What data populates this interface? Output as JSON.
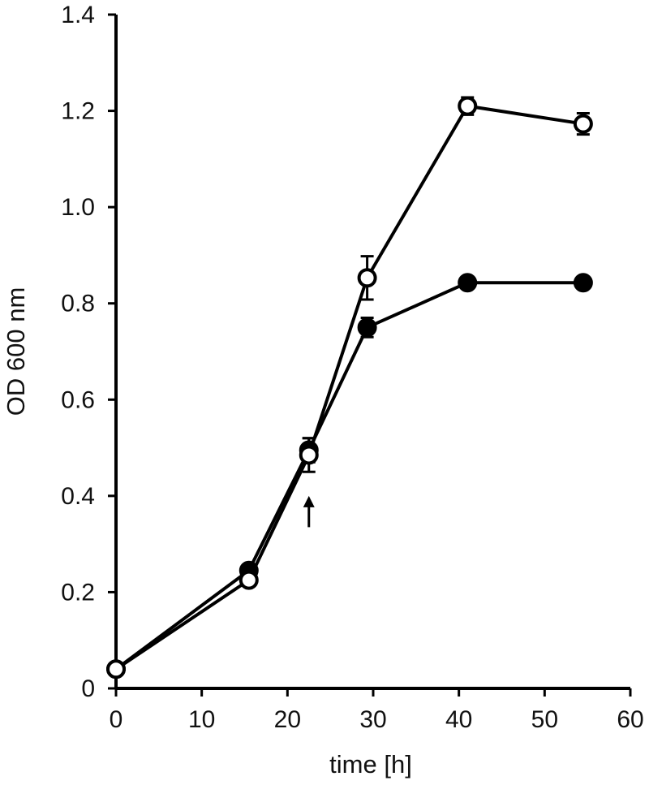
{
  "chart_data": {
    "type": "line",
    "title": "",
    "xlabel": "time [h]",
    "ylabel": "OD 600 nm",
    "xlim": [
      0,
      60
    ],
    "ylim": [
      0,
      1.4
    ],
    "x_ticks": [
      "0",
      "10",
      "20",
      "30",
      "40",
      "50",
      "60"
    ],
    "y_ticks": [
      "0",
      "0.2",
      "0.4",
      "0.6",
      "0.8",
      "1.0",
      "1.2",
      "1.4"
    ],
    "grid": false,
    "legend": "none",
    "series": [
      {
        "marker": "filled-circle",
        "color": "#000000",
        "x": [
          0,
          15.5,
          22.5,
          29.3,
          41,
          54.5
        ],
        "y": [
          0.04,
          0.245,
          0.495,
          0.75,
          0.843,
          0.843
        ],
        "err": [
          0.008,
          0.01,
          0.025,
          0.02,
          0.012,
          0.006
        ]
      },
      {
        "marker": "open-circle",
        "color": "#000000",
        "x": [
          0,
          15.5,
          22.5,
          29.3,
          41,
          54.5
        ],
        "y": [
          0.04,
          0.225,
          0.485,
          0.853,
          1.21,
          1.173
        ],
        "err": [
          0.008,
          0.012,
          0.035,
          0.045,
          0.018,
          0.022
        ]
      }
    ],
    "annotations": [
      {
        "type": "arrow-up",
        "x": 22.5,
        "y_tip": 0.4,
        "y_tail": 0.335
      }
    ]
  }
}
